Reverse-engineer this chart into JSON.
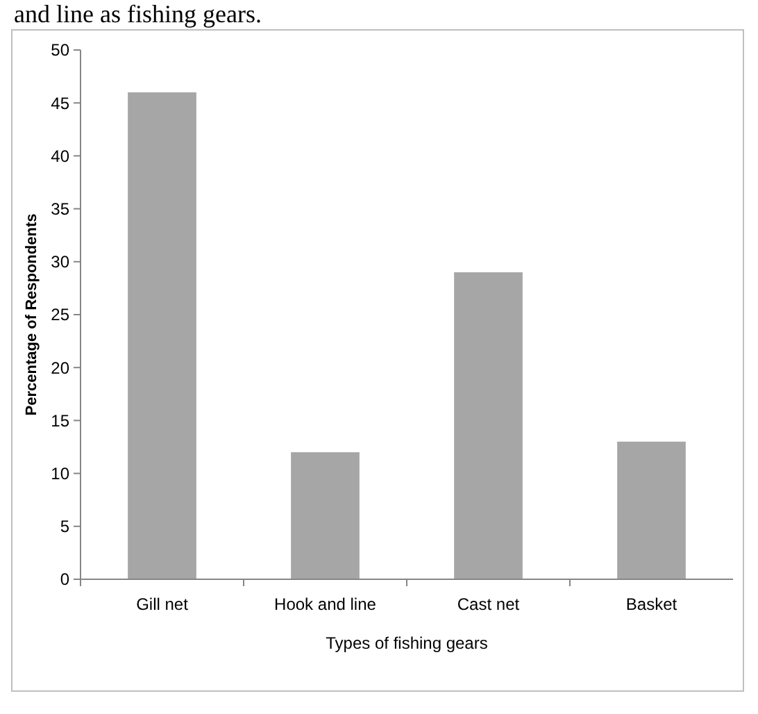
{
  "chart_data": {
    "type": "bar",
    "xlabel": "Types of fishing gears",
    "ylabel": "Percentage of Respondents",
    "categories": [
      "Gill net",
      "Hook and line",
      "Cast net",
      "Basket"
    ],
    "values": [
      46,
      12,
      29,
      13
    ],
    "color": "#a6a6a6",
    "ylim": [
      0,
      50
    ],
    "yticks": [
      0,
      5,
      10,
      15,
      20,
      25,
      30,
      35,
      40,
      45,
      50
    ],
    "grid": false,
    "annotations": [
      "and line as fishing gears."
    ]
  }
}
